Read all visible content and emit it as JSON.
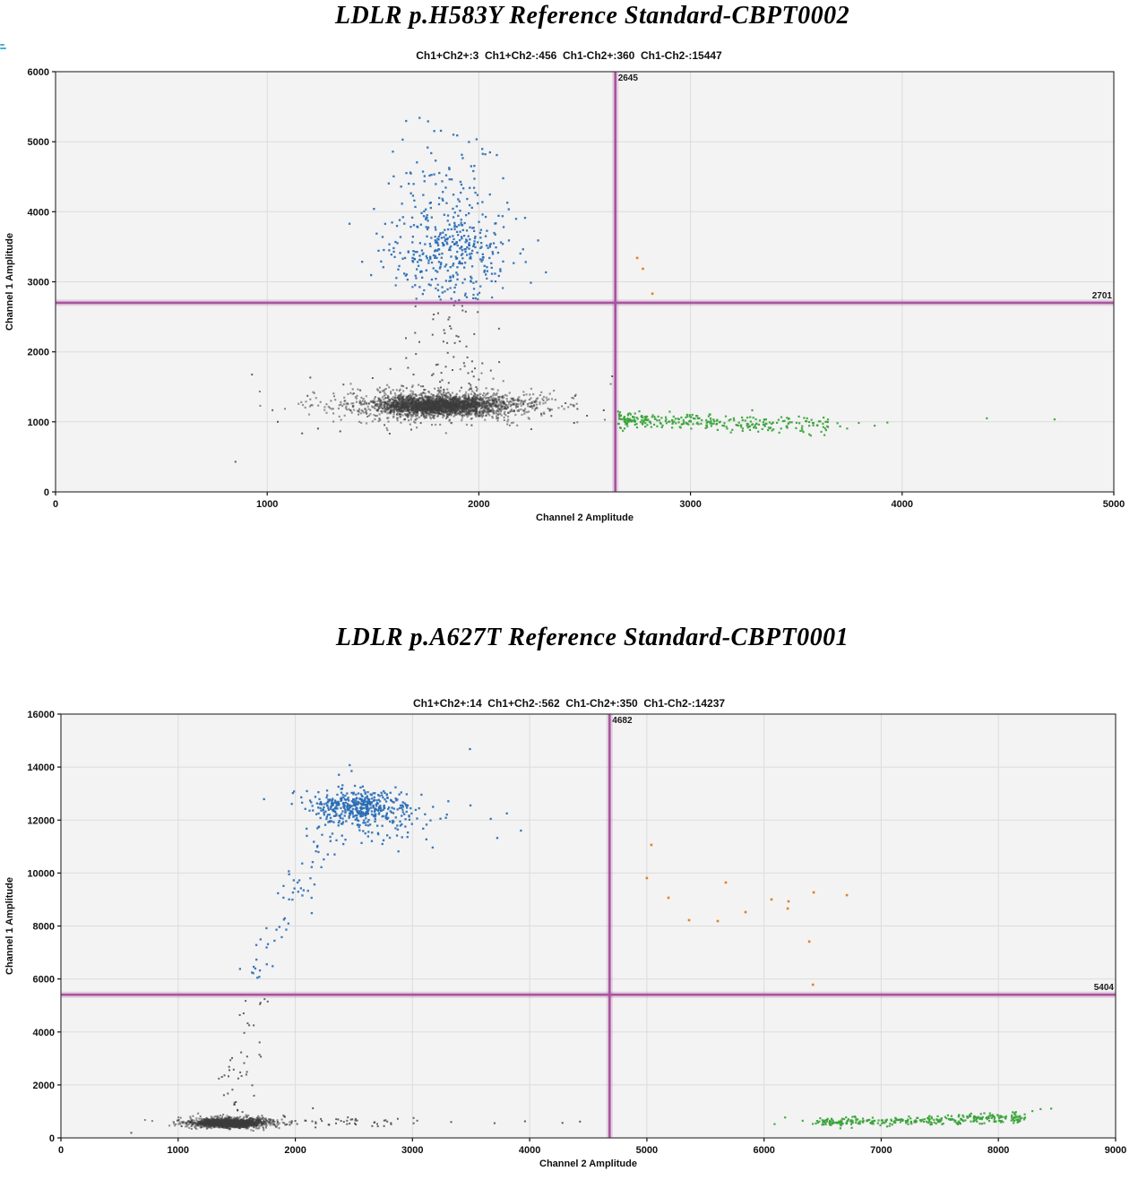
{
  "page": {
    "background": "#ffffff"
  },
  "chart_data": [
    {
      "type": "scatter",
      "title": "LDLR p.H583Y Reference Standard-CBPT0002",
      "counts_label": "Ch1+Ch2+:3  Ch1+Ch2-:456  Ch1-Ch2+:360  Ch1-Ch2-:15447",
      "counts": {
        "Ch1+Ch2+": 3,
        "Ch1+Ch2-": 456,
        "Ch1-Ch2+": 360,
        "Ch1-Ch2-": 15447
      },
      "xlabel": "Channel 2 Amplitude",
      "ylabel": "Channel 1 Amplitude",
      "xlim": [
        0,
        5000
      ],
      "ylim": [
        0,
        6000
      ],
      "xticks": [
        0,
        1000,
        2000,
        3000,
        4000,
        5000
      ],
      "yticks": [
        0,
        1000,
        2000,
        3000,
        4000,
        5000,
        6000
      ],
      "grid": true,
      "threshold_x": 2645,
      "threshold_y": 2701,
      "threshold_x_label": "2645",
      "threshold_y_label": "2701",
      "plot_bg": "#f3f3f3",
      "palette": {
        "fam": "#2a6cb5",
        "hex": "#3aa33a",
        "double": "#df7a20",
        "neg": "#3c3c3c",
        "threshold": "#a8549e"
      },
      "clusters": [
        {
          "name": "negatives-core",
          "color": "neg",
          "opacity": 0.5,
          "kind": "gauss",
          "n": 1500,
          "cx": 1815,
          "cy": 1235,
          "sx": 140,
          "sy": 62,
          "size": 2.2,
          "xmax": 2640
        },
        {
          "name": "negatives-mid",
          "color": "neg",
          "opacity": 0.5,
          "kind": "gauss",
          "n": 950,
          "cx": 1830,
          "cy": 1235,
          "sx": 215,
          "sy": 95,
          "size": 2.2,
          "xmax": 2640
        },
        {
          "name": "negatives-outer",
          "color": "neg",
          "opacity": 0.62,
          "kind": "gauss",
          "n": 330,
          "cx": 1840,
          "cy": 1245,
          "sx": 295,
          "sy": 140,
          "size": 2,
          "xmax": 2640
        },
        {
          "name": "negatives-sparse",
          "color": "neg",
          "opacity": 0.8,
          "kind": "gauss",
          "n": 55,
          "cx": 1900,
          "cy": 1255,
          "sx": 420,
          "sy": 205,
          "size": 2,
          "xmax": 2640
        },
        {
          "name": "negatives-rain",
          "color": "neg",
          "opacity": 0.8,
          "kind": "trail",
          "n": 58,
          "cx": 1875,
          "sx": 95,
          "y0": 1470,
          "y1": 2690,
          "size": 2
        },
        {
          "name": "negatives-outliers",
          "color": "neg",
          "opacity": 0.85,
          "kind": "list",
          "size": 2,
          "pts": [
            [
              850,
              430
            ],
            [
              1165,
              835
            ],
            [
              1345,
              865
            ],
            [
              1240,
              905
            ],
            [
              2450,
              985
            ],
            [
              2630,
              1650
            ],
            [
              2590,
              1165
            ],
            [
              1050,
              1000
            ]
          ]
        },
        {
          "name": "fam-rain",
          "color": "fam",
          "opacity": 0.9,
          "kind": "trail",
          "n": 26,
          "cx": 1885,
          "sx": 115,
          "y0": 2715,
          "y1": 3050,
          "size": 2.2
        },
        {
          "name": "fam-main",
          "color": "fam",
          "opacity": 0.92,
          "kind": "gauss",
          "n": 355,
          "cx": 1862,
          "cy": 3480,
          "sx": 148,
          "sy": 330,
          "size": 2.3,
          "ymin": 2710
        },
        {
          "name": "fam-upper",
          "color": "fam",
          "opacity": 0.92,
          "kind": "gauss",
          "n": 72,
          "cx": 1835,
          "cy": 4480,
          "sx": 128,
          "sy": 330,
          "size": 2.3,
          "ymin": 2710,
          "ymax": 5450
        },
        {
          "name": "fam-outliers",
          "color": "fam",
          "opacity": 0.92,
          "kind": "list",
          "size": 2.3,
          "pts": [
            [
              1720,
              5340
            ],
            [
              1760,
              5290
            ],
            [
              1880,
              5100
            ],
            [
              1640,
              5030
            ],
            [
              1545,
              3640
            ],
            [
              2280,
              3590
            ],
            [
              2085,
              4810
            ]
          ]
        },
        {
          "name": "hex-main",
          "color": "hex",
          "opacity": 0.92,
          "kind": "band",
          "n": 315,
          "x0": 2660,
          "x1": 3680,
          "ya": 1045,
          "yb": 930,
          "noise": 58,
          "skew": 1.45,
          "jx": 15,
          "size": 2.2,
          "xmin": 2650
        },
        {
          "name": "hex-sparse",
          "color": "hex",
          "opacity": 0.92,
          "kind": "list",
          "size": 2.2,
          "pts": [
            [
              3740,
              905
            ],
            [
              3795,
              985
            ],
            [
              3870,
              945
            ],
            [
              3930,
              990
            ],
            [
              4400,
              1050
            ],
            [
              4720,
              1035
            ]
          ]
        },
        {
          "name": "double-positives",
          "color": "double",
          "opacity": 0.95,
          "kind": "list",
          "size": 2.6,
          "pts": [
            [
              2748,
              3340
            ],
            [
              2775,
              3185
            ],
            [
              2820,
              2830
            ]
          ]
        }
      ]
    },
    {
      "type": "scatter",
      "title": "LDLR p.A627T Reference Standard-CBPT0001",
      "counts_label": "Ch1+Ch2+:14  Ch1+Ch2-:562  Ch1-Ch2+:350  Ch1-Ch2-:14237",
      "counts": {
        "Ch1+Ch2+": 14,
        "Ch1+Ch2-": 562,
        "Ch1-Ch2+": 350,
        "Ch1-Ch2-": 14237
      },
      "xlabel": "Channel 2 Amplitude",
      "ylabel": "Channel 1 Amplitude",
      "xlim": [
        0,
        9000
      ],
      "ylim": [
        0,
        16000
      ],
      "xticks": [
        0,
        1000,
        2000,
        3000,
        4000,
        5000,
        6000,
        7000,
        8000,
        9000
      ],
      "yticks": [
        0,
        2000,
        4000,
        6000,
        8000,
        10000,
        12000,
        14000,
        16000
      ],
      "grid": true,
      "threshold_x": 4682,
      "threshold_y": 5404,
      "threshold_x_label": "4682",
      "threshold_y_label": "5404",
      "plot_bg": "#f3f3f3",
      "palette": {
        "fam": "#2a6cb5",
        "hex": "#3aa33a",
        "double": "#df7a20",
        "neg": "#3c3c3c",
        "threshold": "#a8549e"
      },
      "clusters": [
        {
          "name": "negatives-core",
          "color": "neg",
          "opacity": 0.5,
          "kind": "gauss",
          "n": 1300,
          "cx": 1420,
          "cy": 550,
          "sx": 115,
          "sy": 58,
          "size": 2.2,
          "xmax": 4670,
          "ymin": 120
        },
        {
          "name": "negatives-mid",
          "color": "neg",
          "opacity": 0.5,
          "kind": "gauss",
          "n": 750,
          "cx": 1440,
          "cy": 575,
          "sx": 165,
          "sy": 88,
          "size": 2.2,
          "xmax": 4670,
          "ymin": 100
        },
        {
          "name": "negatives-outer",
          "color": "neg",
          "opacity": 0.62,
          "kind": "gauss",
          "n": 230,
          "cx": 1460,
          "cy": 600,
          "sx": 235,
          "sy": 125,
          "size": 2,
          "xmax": 4670,
          "ymin": 80
        },
        {
          "name": "negatives-right-trail",
          "color": "neg",
          "opacity": 0.8,
          "kind": "band",
          "n": 52,
          "x0": 1820,
          "x1": 3060,
          "ya": 620,
          "yb": 560,
          "noise": 90,
          "skew": 1,
          "jx": 25,
          "size": 2
        },
        {
          "name": "negatives-isolated",
          "color": "neg",
          "opacity": 0.85,
          "kind": "list",
          "size": 2,
          "pts": [
            [
              3330,
              600
            ],
            [
              3700,
              555
            ],
            [
              3960,
              625
            ],
            [
              4280,
              565
            ],
            [
              4430,
              615
            ],
            [
              600,
              190
            ],
            [
              995,
              655
            ],
            [
              1030,
              440
            ],
            [
              2150,
              1120
            ]
          ]
        },
        {
          "name": "negatives-rain-low",
          "color": "neg",
          "opacity": 0.8,
          "kind": "trail",
          "n": 26,
          "cx": 1500,
          "sx": 55,
          "y0": 950,
          "y1": 3000,
          "size": 2
        },
        {
          "name": "negatives-rain-high",
          "color": "neg",
          "opacity": 0.8,
          "kind": "trail",
          "n": 17,
          "cx": 1615,
          "sx": 70,
          "y0": 3000,
          "y1": 5380,
          "size": 2
        },
        {
          "name": "fam-tail",
          "color": "fam",
          "opacity": 0.9,
          "kind": "band",
          "n": 62,
          "x0": 1620,
          "x1": 2330,
          "ya": 5600,
          "yb": 11700,
          "noise": 380,
          "skew": 0.85,
          "jx": 70,
          "size": 2.3,
          "ymin": 5420
        },
        {
          "name": "fam-main",
          "color": "fam",
          "opacity": 0.92,
          "kind": "gauss",
          "n": 420,
          "cx": 2520,
          "cy": 12520,
          "sx": 210,
          "sy": 320,
          "size": 2.3,
          "ymin": 5420
        },
        {
          "name": "fam-fan",
          "color": "fam",
          "opacity": 0.92,
          "kind": "gauss",
          "n": 85,
          "cx": 2700,
          "cy": 11900,
          "sx": 310,
          "sy": 430,
          "size": 2.3,
          "ymin": 5420
        },
        {
          "name": "fam-isolated",
          "color": "fam",
          "opacity": 0.92,
          "kind": "list",
          "size": 2.3,
          "pts": [
            [
              3490,
              14680
            ],
            [
              3495,
              12550
            ],
            [
              3805,
              12250
            ],
            [
              3925,
              11600
            ],
            [
              2480,
              13850
            ]
          ]
        },
        {
          "name": "hex-main",
          "color": "hex",
          "opacity": 0.92,
          "kind": "band",
          "n": 330,
          "x0": 6480,
          "x1": 8230,
          "ya": 565,
          "yb": 770,
          "noise": 88,
          "skew": 1.15,
          "jx": 30,
          "size": 2.2,
          "xmin": 4690,
          "ymin": 120
        },
        {
          "name": "hex-sparse",
          "color": "hex",
          "opacity": 0.92,
          "kind": "list",
          "size": 2.2,
          "pts": [
            [
              6180,
              770
            ],
            [
              6330,
              645
            ],
            [
              8290,
              1010
            ],
            [
              8360,
              1085
            ],
            [
              8450,
              1105
            ],
            [
              8150,
              975
            ],
            [
              7880,
              930
            ],
            [
              6090,
              520
            ]
          ]
        },
        {
          "name": "double-positives",
          "color": "double",
          "opacity": 0.95,
          "kind": "list",
          "size": 2.6,
          "pts": [
            [
              5038,
              11060
            ],
            [
              5000,
              9810
            ],
            [
              5184,
              9065
            ],
            [
              5360,
              8220
            ],
            [
              5605,
              8185
            ],
            [
              5674,
              9640
            ],
            [
              5842,
              8525
            ],
            [
              6064,
              9000
            ],
            [
              6209,
              8930
            ],
            [
              6202,
              8660
            ],
            [
              6424,
              9270
            ],
            [
              6707,
              9165
            ],
            [
              6386,
              7410
            ],
            [
              6417,
              5785
            ]
          ]
        }
      ]
    }
  ]
}
